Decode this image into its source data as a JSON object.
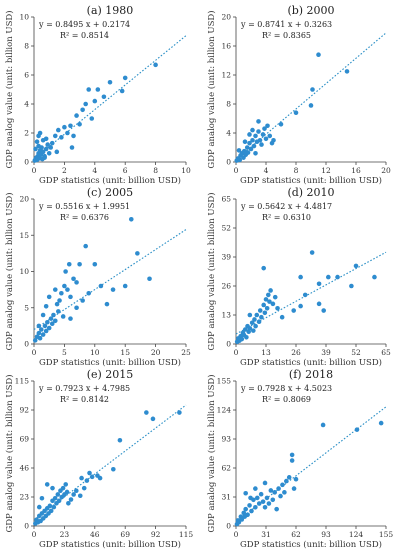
{
  "chart_data": [
    {
      "type": "scatter",
      "title": "(a) 1980",
      "equation": "y = 0.8495 x + 0.2174",
      "r2": "R² = 0.8514",
      "xlabel": "GDP statistics (unit: billion USD)",
      "ylabel": "GDP analog value (unit: billion USD)",
      "xlim": [
        0,
        10
      ],
      "ylim": [
        0,
        10
      ],
      "xticks": [
        0,
        2,
        4,
        6,
        8,
        10
      ],
      "yticks": [
        0,
        2,
        4,
        6,
        8,
        10
      ],
      "fit": {
        "slope": 0.8495,
        "intercept": 0.2174
      },
      "points": [
        [
          0.05,
          0.1
        ],
        [
          0.1,
          0.2
        ],
        [
          0.15,
          0.3
        ],
        [
          0.2,
          0.15
        ],
        [
          0.25,
          0.4
        ],
        [
          0.3,
          0.6
        ],
        [
          0.35,
          0.25
        ],
        [
          0.4,
          0.8
        ],
        [
          0.45,
          0.5
        ],
        [
          0.5,
          1.0
        ],
        [
          0.55,
          0.2
        ],
        [
          0.6,
          0.7
        ],
        [
          0.7,
          0.4
        ],
        [
          0.8,
          0.9
        ],
        [
          0.9,
          1.2
        ],
        [
          1.0,
          0.6
        ],
        [
          1.1,
          1.0
        ],
        [
          0.2,
          1.4
        ],
        [
          0.3,
          1.8
        ],
        [
          0.4,
          2.0
        ],
        [
          0.6,
          1.5
        ],
        [
          0.8,
          1.6
        ],
        [
          1.2,
          1.3
        ],
        [
          1.4,
          1.8
        ],
        [
          1.6,
          2.2
        ],
        [
          1.8,
          1.7
        ],
        [
          2.0,
          2.4
        ],
        [
          2.2,
          2.0
        ],
        [
          2.4,
          2.5
        ],
        [
          2.6,
          1.8
        ],
        [
          2.8,
          3.2
        ],
        [
          3.0,
          2.6
        ],
        [
          3.2,
          3.6
        ],
        [
          3.4,
          4.0
        ],
        [
          3.6,
          5.0
        ],
        [
          3.8,
          3.0
        ],
        [
          4.0,
          4.2
        ],
        [
          4.2,
          5.0
        ],
        [
          4.6,
          4.5
        ],
        [
          5.0,
          5.5
        ],
        [
          5.8,
          4.9
        ],
        [
          6.0,
          5.8
        ],
        [
          8.0,
          6.7
        ],
        [
          2.5,
          1.0
        ],
        [
          1.5,
          0.7
        ],
        [
          0.1,
          0.9
        ],
        [
          0.3,
          1.1
        ],
        [
          0.7,
          0.3
        ]
      ]
    },
    {
      "type": "scatter",
      "title": "(b) 2000",
      "equation": "y = 0.8741 x + 0.3263",
      "r2": "R² = 0.8365",
      "xlabel": "GDP statistics (unit: billion USD)",
      "ylabel": "GDP analog value (unit: billion USD)",
      "xlim": [
        0,
        20
      ],
      "ylim": [
        0,
        20
      ],
      "xticks": [
        0,
        4,
        8,
        12,
        16,
        20
      ],
      "yticks": [
        0,
        4,
        8,
        12,
        16,
        20
      ],
      "fit": {
        "slope": 0.8741,
        "intercept": 0.3263
      },
      "points": [
        [
          0.1,
          0.2
        ],
        [
          0.3,
          0.5
        ],
        [
          0.5,
          0.3
        ],
        [
          0.6,
          0.9
        ],
        [
          0.8,
          1.2
        ],
        [
          1.0,
          0.6
        ],
        [
          1.1,
          1.5
        ],
        [
          1.3,
          1.0
        ],
        [
          1.5,
          2.0
        ],
        [
          1.6,
          1.3
        ],
        [
          1.8,
          2.6
        ],
        [
          2.0,
          1.8
        ],
        [
          2.2,
          3.0
        ],
        [
          2.4,
          2.2
        ],
        [
          2.6,
          3.6
        ],
        [
          2.8,
          2.8
        ],
        [
          3.0,
          4.2
        ],
        [
          3.2,
          3.0
        ],
        [
          3.4,
          2.4
        ],
        [
          3.6,
          3.8
        ],
        [
          3.8,
          4.6
        ],
        [
          4.0,
          3.2
        ],
        [
          4.2,
          5.0
        ],
        [
          4.5,
          3.6
        ],
        [
          2.2,
          4.4
        ],
        [
          1.8,
          3.8
        ],
        [
          3.0,
          5.6
        ],
        [
          5.0,
          3.0
        ],
        [
          6.0,
          5.2
        ],
        [
          8.0,
          6.8
        ],
        [
          10.0,
          7.8
        ],
        [
          10.2,
          10.0
        ],
        [
          11.0,
          14.8
        ],
        [
          14.8,
          12.5
        ],
        [
          1.2,
          2.8
        ],
        [
          0.4,
          1.6
        ],
        [
          2.6,
          1.2
        ],
        [
          4.8,
          2.6
        ]
      ]
    },
    {
      "type": "scatter",
      "title": "(c) 2005",
      "equation": "y = 0.5516 x + 1.9951",
      "r2": "R² = 0.6376",
      "xlabel": "GDP statistics (unit: billion USD)",
      "ylabel": "GDP analog value (unit: billion USD)",
      "xlim": [
        0,
        25
      ],
      "ylim": [
        0,
        20
      ],
      "xticks": [
        0,
        5,
        10,
        15,
        20,
        25
      ],
      "yticks": [
        0,
        5,
        10,
        15,
        20
      ],
      "fit": {
        "slope": 0.5516,
        "intercept": 1.9951
      },
      "points": [
        [
          0.2,
          0.5
        ],
        [
          0.5,
          1.0
        ],
        [
          0.8,
          1.5
        ],
        [
          1.0,
          0.8
        ],
        [
          1.2,
          2.0
        ],
        [
          1.5,
          1.3
        ],
        [
          1.8,
          2.5
        ],
        [
          2.0,
          1.8
        ],
        [
          2.2,
          3.0
        ],
        [
          2.5,
          2.2
        ],
        [
          2.8,
          3.5
        ],
        [
          3.0,
          2.8
        ],
        [
          3.2,
          4.0
        ],
        [
          3.5,
          3.2
        ],
        [
          3.8,
          5.5
        ],
        [
          4.0,
          4.5
        ],
        [
          4.2,
          6.0
        ],
        [
          4.5,
          7.0
        ],
        [
          4.8,
          3.8
        ],
        [
          5.0,
          8.0
        ],
        [
          5.2,
          10.0
        ],
        [
          5.5,
          7.5
        ],
        [
          5.8,
          11.0
        ],
        [
          6.0,
          6.5
        ],
        [
          6.5,
          9.0
        ],
        [
          7.0,
          8.5
        ],
        [
          7.5,
          11.0
        ],
        [
          8.0,
          6.0
        ],
        [
          8.5,
          13.5
        ],
        [
          9.0,
          7.0
        ],
        [
          10.0,
          11.0
        ],
        [
          11.0,
          8.0
        ],
        [
          12.0,
          5.5
        ],
        [
          13.0,
          7.5
        ],
        [
          15.0,
          8.0
        ],
        [
          16.0,
          17.2
        ],
        [
          17.0,
          12.5
        ],
        [
          19.0,
          9.0
        ],
        [
          2.5,
          6.5
        ],
        [
          3.5,
          7.5
        ],
        [
          6.0,
          3.5
        ],
        [
          7.0,
          5.0
        ],
        [
          1.5,
          4.0
        ],
        [
          0.8,
          2.5
        ],
        [
          2.0,
          5.2
        ]
      ]
    },
    {
      "type": "scatter",
      "title": "(d) 2010",
      "equation": "y = 0.5642 x + 4.4817",
      "r2": "R² = 0.6310",
      "xlabel": "GDP statistics (unit: billion USD)",
      "ylabel": "GDP analog value (unit: billion USD)",
      "xlim": [
        0,
        65
      ],
      "ylim": [
        0,
        65
      ],
      "xticks": [
        0,
        13,
        26,
        39,
        52,
        65
      ],
      "yticks": [
        0,
        13,
        26,
        39,
        52,
        65
      ],
      "fit": {
        "slope": 0.5642,
        "intercept": 4.4817
      },
      "points": [
        [
          0.5,
          1.0
        ],
        [
          1.0,
          2.5
        ],
        [
          1.5,
          1.5
        ],
        [
          2.0,
          3.5
        ],
        [
          2.5,
          2.2
        ],
        [
          3.0,
          5.0
        ],
        [
          3.5,
          4.0
        ],
        [
          4.0,
          6.5
        ],
        [
          4.5,
          3.0
        ],
        [
          5.0,
          8.0
        ],
        [
          5.5,
          5.5
        ],
        [
          6.0,
          7.0
        ],
        [
          7.0,
          9.5
        ],
        [
          7.5,
          6.0
        ],
        [
          8.0,
          11.0
        ],
        [
          8.5,
          8.0
        ],
        [
          9.0,
          13.0
        ],
        [
          10.0,
          10.0
        ],
        [
          10.5,
          15.0
        ],
        [
          11.0,
          12.0
        ],
        [
          12.0,
          17.5
        ],
        [
          12.5,
          14.0
        ],
        [
          13.0,
          20.0
        ],
        [
          13.5,
          16.0
        ],
        [
          14.0,
          22.0
        ],
        [
          14.5,
          19.0
        ],
        [
          15.0,
          24.0
        ],
        [
          16.0,
          18.0
        ],
        [
          17.0,
          21.0
        ],
        [
          18.0,
          16.0
        ],
        [
          20.0,
          12.0
        ],
        [
          25.0,
          15.0
        ],
        [
          28.0,
          30.0
        ],
        [
          28.0,
          17.0
        ],
        [
          30.0,
          22.0
        ],
        [
          33.0,
          41.0
        ],
        [
          36.0,
          18.0
        ],
        [
          36.0,
          27.0
        ],
        [
          38.0,
          15.0
        ],
        [
          40.0,
          30.0
        ],
        [
          44.0,
          30.0
        ],
        [
          50.0,
          26.0
        ],
        [
          52.0,
          35.0
        ],
        [
          60.0,
          30.0
        ],
        [
          12.0,
          34.0
        ],
        [
          6.0,
          13.0
        ]
      ]
    },
    {
      "type": "scatter",
      "title": "(e) 2015",
      "equation": "y = 0.7923 x + 4.7985",
      "r2": "R² = 0.8142",
      "xlabel": "GDP statistics (unit: billion USD)",
      "ylabel": "GDP analog value (unit: billion USD)",
      "xlim": [
        0,
        115
      ],
      "ylim": [
        0,
        115
      ],
      "xticks": [
        0,
        23,
        46,
        69,
        92,
        115
      ],
      "yticks": [
        0,
        23,
        46,
        69,
        92,
        115
      ],
      "fit": {
        "slope": 0.7923,
        "intercept": 4.7985
      },
      "points": [
        [
          1,
          2
        ],
        [
          2,
          5
        ],
        [
          3,
          3
        ],
        [
          4,
          8
        ],
        [
          5,
          4
        ],
        [
          6,
          10
        ],
        [
          7,
          6
        ],
        [
          8,
          12
        ],
        [
          9,
          8
        ],
        [
          10,
          14
        ],
        [
          11,
          10
        ],
        [
          12,
          16
        ],
        [
          13,
          12
        ],
        [
          14,
          20
        ],
        [
          15,
          15
        ],
        [
          16,
          22
        ],
        [
          17,
          18
        ],
        [
          18,
          25
        ],
        [
          19,
          20
        ],
        [
          20,
          28
        ],
        [
          21,
          23
        ],
        [
          22,
          30
        ],
        [
          23,
          25
        ],
        [
          24,
          33
        ],
        [
          25,
          27
        ],
        [
          26,
          18
        ],
        [
          28,
          21
        ],
        [
          30,
          25
        ],
        [
          32,
          28
        ],
        [
          35,
          24
        ],
        [
          36,
          38
        ],
        [
          38,
          30
        ],
        [
          40,
          36
        ],
        [
          42,
          42
        ],
        [
          44,
          39
        ],
        [
          48,
          40
        ],
        [
          50,
          38
        ],
        [
          60,
          45
        ],
        [
          65,
          68
        ],
        [
          85,
          90
        ],
        [
          90,
          85
        ],
        [
          110,
          90
        ],
        [
          10,
          33
        ],
        [
          14,
          30
        ],
        [
          4,
          15
        ],
        [
          6,
          22
        ]
      ]
    },
    {
      "type": "scatter",
      "title": "(f) 2018",
      "equation": "y = 0.7928 x + 4.5023",
      "r2": "R² = 0.8069",
      "xlabel": "GDP statistics (unit: billion USD)",
      "ylabel": "GDP analog value (unit: billion USD)",
      "xlim": [
        0,
        155
      ],
      "ylim": [
        0,
        155
      ],
      "xticks": [
        0,
        31,
        62,
        93,
        124,
        155
      ],
      "yticks": [
        0,
        31,
        62,
        93,
        124,
        155
      ],
      "fit": {
        "slope": 0.7928,
        "intercept": 4.5023
      },
      "points": [
        [
          1,
          2
        ],
        [
          2,
          6
        ],
        [
          3,
          4
        ],
        [
          5,
          10
        ],
        [
          6,
          7
        ],
        [
          8,
          14
        ],
        [
          9,
          10
        ],
        [
          10,
          18
        ],
        [
          12,
          12
        ],
        [
          14,
          22
        ],
        [
          16,
          16
        ],
        [
          18,
          28
        ],
        [
          20,
          20
        ],
        [
          22,
          30
        ],
        [
          24,
          24
        ],
        [
          26,
          34
        ],
        [
          28,
          26
        ],
        [
          30,
          20
        ],
        [
          32,
          30
        ],
        [
          34,
          24
        ],
        [
          36,
          38
        ],
        [
          38,
          28
        ],
        [
          40,
          36
        ],
        [
          42,
          18
        ],
        [
          44,
          40
        ],
        [
          46,
          32
        ],
        [
          48,
          44
        ],
        [
          50,
          36
        ],
        [
          52,
          48
        ],
        [
          55,
          52
        ],
        [
          58,
          76
        ],
        [
          58,
          70
        ],
        [
          60,
          40
        ],
        [
          62,
          50
        ],
        [
          90,
          108
        ],
        [
          125,
          103
        ],
        [
          150,
          110
        ],
        [
          20,
          40
        ],
        [
          15,
          30
        ],
        [
          10,
          35
        ],
        [
          30,
          46
        ]
      ]
    }
  ]
}
